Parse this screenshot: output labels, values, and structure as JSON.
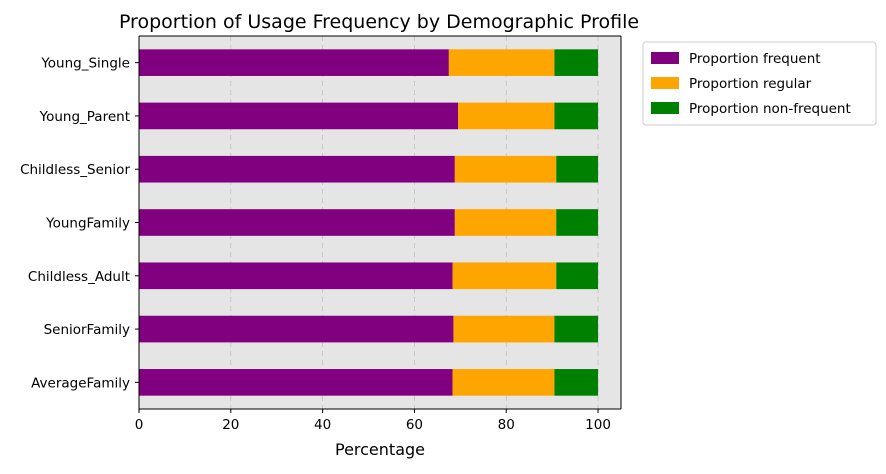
{
  "chart_data": {
    "type": "bar",
    "orientation": "horizontal",
    "stacked": true,
    "title": "Proportion of Usage Frequency by Demographic Profile",
    "xlabel": "Percentage",
    "ylabel": "",
    "xlim": [
      0,
      105
    ],
    "xticks": [
      0,
      20,
      40,
      60,
      80,
      100
    ],
    "grid": "vertical dashed",
    "legend_position": "outside-top-right",
    "background_color": "#e5e5e5",
    "categories": [
      "Young_Single",
      "Young_Parent",
      "Childless_Senior",
      "YoungFamily",
      "Childless_Adult",
      "SeniorFamily",
      "AverageFamily"
    ],
    "series": [
      {
        "name": "Proportion frequent",
        "color": "#800080",
        "values": [
          67.5,
          69.5,
          68.8,
          68.8,
          68.3,
          68.5,
          68.3
        ]
      },
      {
        "name": "Proportion regular",
        "color": "#ffa500",
        "values": [
          23.0,
          21.0,
          22.1,
          22.1,
          22.6,
          22.0,
          22.2
        ]
      },
      {
        "name": "Proportion non-frequent",
        "color": "#008000",
        "values": [
          9.5,
          9.5,
          9.1,
          9.1,
          9.1,
          9.5,
          9.5
        ]
      }
    ]
  }
}
